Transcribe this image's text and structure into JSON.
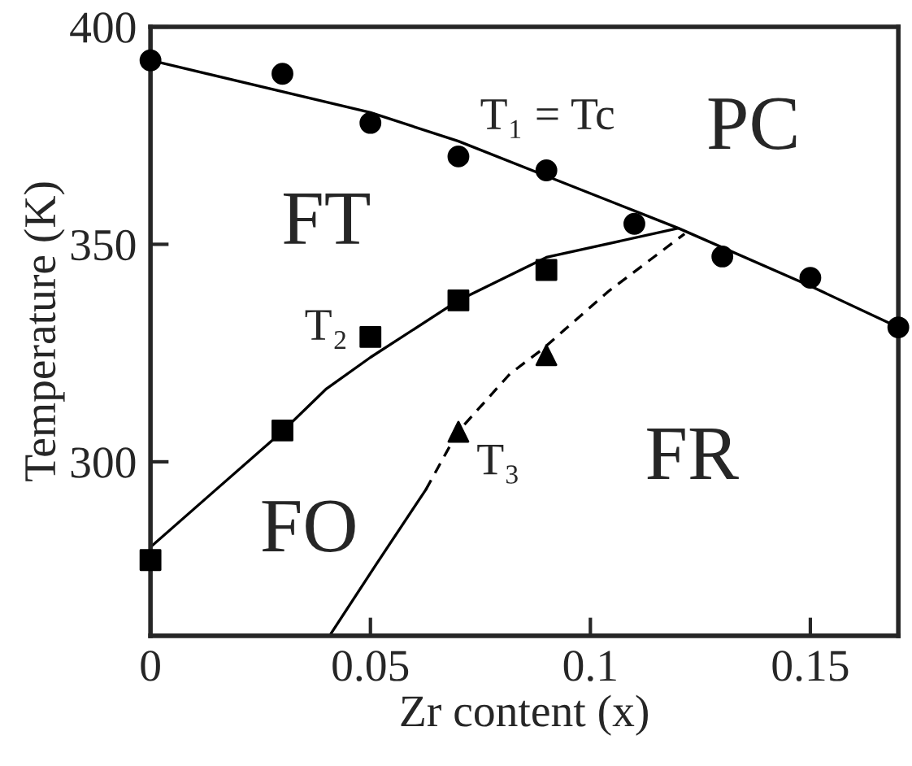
{
  "chart_data": {
    "type": "scatter",
    "xlabel": "Zr content (x)",
    "ylabel": "Temperature (K)",
    "xlim": [
      0,
      0.17
    ],
    "ylim": [
      260,
      400
    ],
    "xticks": [
      0,
      0.05,
      0.1,
      0.15
    ],
    "yticks": [
      300,
      350,
      400
    ],
    "grid": false,
    "series": [
      {
        "type": "line",
        "color": "#000000",
        "line_style": "solid",
        "marker": "none",
        "x": [
          0,
          0.05,
          0.07,
          0.09,
          0.12,
          0.15,
          0.17
        ],
        "values": [
          392.3,
          380.3,
          373.7,
          365.7,
          353.7,
          340.4,
          330.9
        ]
      },
      {
        "type": "line",
        "color": "#000000",
        "line_style": "solid",
        "marker": "none",
        "x": [
          0,
          0.03,
          0.04,
          0.05,
          0.07,
          0.09,
          0.12
        ],
        "values": [
          280.4,
          307,
          316.8,
          324,
          337.1,
          347,
          353.7
        ]
      },
      {
        "type": "line",
        "color": "#000000",
        "line_style": "solid",
        "marker": "none",
        "x": [
          0.0407,
          0.0513,
          0.0626
        ],
        "values": [
          260,
          276.4,
          293.6
        ]
      },
      {
        "type": "line",
        "color": "#000000",
        "line_style": "dashed",
        "marker": "none",
        "x": [
          0.0626,
          0.0698,
          0.0817,
          0.089,
          0.104,
          0.1214
        ],
        "values": [
          293.6,
          306.8,
          320.2,
          325.8,
          339.1,
          352.4
        ]
      },
      {
        "color": "#000000",
        "marker": "circle",
        "x": [
          0,
          0.03,
          0.05,
          0.07,
          0.09,
          0.11,
          0.13,
          0.15,
          0.17
        ],
        "values": [
          392.3,
          389.2,
          377.9,
          370.2,
          367,
          354.7,
          347.2,
          342.3,
          330.9
        ]
      },
      {
        "color": "#000000",
        "marker": "square",
        "x": [
          0,
          0.03,
          0.05,
          0.07,
          0.09
        ],
        "values": [
          277.4,
          307.2,
          328.7,
          337.1,
          344.1
        ]
      },
      {
        "color": "#000000",
        "marker": "triangle",
        "x": [
          0.07,
          0.09
        ],
        "values": [
          306.9,
          324.5
        ]
      }
    ],
    "annotations": [
      "T₁ = Tc",
      "PC",
      "FT",
      "T₂",
      "FO",
      "T₃",
      "FR"
    ]
  }
}
